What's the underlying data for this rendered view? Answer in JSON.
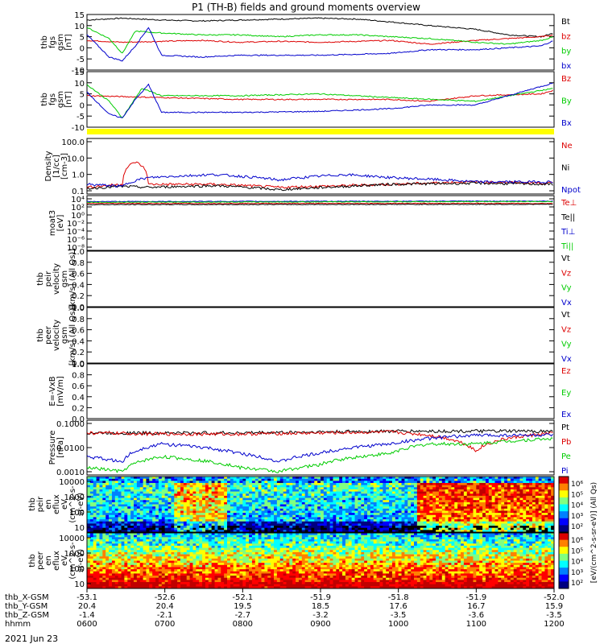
{
  "title": "P1 (TH-B) fields and ground moments overview",
  "date_label": "2021 Jun 23",
  "colors": {
    "black": "#000000",
    "red": "#dd0000",
    "green": "#00cc00",
    "blue": "#0000cc",
    "yellow": "#ffff00"
  },
  "chart_data": [
    {
      "type": "line",
      "panel": "fgs-gsm",
      "ylabel": [
        "thb",
        "fgs",
        "gsm",
        "[nT]"
      ],
      "yticks": [
        "15",
        "10",
        "5",
        "0",
        "-5",
        "-10"
      ],
      "ylim": [
        -15,
        15
      ],
      "series": [
        {
          "name": "Bt",
          "color": "red_black",
          "values": [
            [
              6,
              12
            ],
            [
              60,
              13
            ],
            [
              120,
              12
            ],
            [
              180,
              11.5
            ],
            [
              240,
              12
            ],
            [
              300,
              12.5
            ],
            [
              360,
              13
            ],
            [
              420,
              12.5
            ],
            [
              470,
              11
            ],
            [
              530,
              9
            ],
            [
              600,
              7
            ],
            [
              650,
              4
            ],
            [
              700,
              3
            ],
            [
              720,
              5
            ]
          ]
        },
        {
          "name": "bz",
          "values": [
            [
              6,
              1
            ],
            [
              60,
              0
            ],
            [
              120,
              0.5
            ],
            [
              180,
              1
            ],
            [
              240,
              0
            ],
            [
              300,
              0.5
            ],
            [
              360,
              0
            ],
            [
              420,
              0.5
            ],
            [
              470,
              1
            ],
            [
              530,
              -1
            ],
            [
              600,
              1
            ],
            [
              650,
              2
            ],
            [
              700,
              3
            ],
            [
              720,
              4
            ]
          ]
        },
        {
          "name": "by",
          "values": [
            [
              6,
              8
            ],
            [
              40,
              2
            ],
            [
              60,
              -6
            ],
            [
              80,
              6
            ],
            [
              120,
              5
            ],
            [
              180,
              4
            ],
            [
              240,
              4
            ],
            [
              300,
              3
            ],
            [
              360,
              4
            ],
            [
              420,
              4
            ],
            [
              470,
              3
            ],
            [
              530,
              2
            ],
            [
              600,
              0
            ],
            [
              650,
              -1
            ],
            [
              700,
              1
            ],
            [
              720,
              3
            ]
          ]
        },
        {
          "name": "bx",
          "values": [
            [
              6,
              4
            ],
            [
              40,
              -8
            ],
            [
              60,
              -10
            ],
            [
              80,
              -2
            ],
            [
              100,
              8
            ],
            [
              120,
              -7
            ],
            [
              180,
              -8
            ],
            [
              240,
              -7
            ],
            [
              300,
              -7
            ],
            [
              360,
              -7
            ],
            [
              420,
              -6.5
            ],
            [
              470,
              -6
            ],
            [
              530,
              -4
            ],
            [
              600,
              -4
            ],
            [
              650,
              -3
            ],
            [
              700,
              -2
            ],
            [
              720,
              1
            ]
          ]
        }
      ]
    },
    {
      "type": "line",
      "panel": "fgs-gsm2",
      "ylabel": [
        "thb",
        "fgs",
        "gsm",
        "[nT]"
      ],
      "yticks": [
        "15",
        "10",
        "5",
        "0",
        "-5",
        "-10"
      ],
      "ylim": [
        -15,
        15
      ],
      "series": [
        {
          "name": "Bz",
          "values": [
            [
              6,
              2
            ],
            [
              120,
              1
            ],
            [
              240,
              0
            ],
            [
              360,
              0
            ],
            [
              470,
              0
            ],
            [
              530,
              -1
            ],
            [
              600,
              2
            ],
            [
              700,
              3
            ],
            [
              720,
              5
            ]
          ]
        },
        {
          "name": "By",
          "values": [
            [
              6,
              8
            ],
            [
              40,
              -1
            ],
            [
              60,
              -10
            ],
            [
              90,
              6
            ],
            [
              120,
              2
            ],
            [
              240,
              2
            ],
            [
              360,
              3
            ],
            [
              470,
              1
            ],
            [
              600,
              -1
            ],
            [
              720,
              6
            ]
          ]
        },
        {
          "name": "Bx",
          "values": [
            [
              6,
              4
            ],
            [
              40,
              -8
            ],
            [
              60,
              -10
            ],
            [
              80,
              0
            ],
            [
              100,
              8
            ],
            [
              120,
              -7
            ],
            [
              240,
              -7
            ],
            [
              360,
              -6.5
            ],
            [
              470,
              -5
            ],
            [
              530,
              -3
            ],
            [
              600,
              -3
            ],
            [
              700,
              7
            ],
            [
              720,
              9
            ]
          ]
        }
      ]
    },
    {
      "type": "line",
      "panel": "density",
      "yscale": "log",
      "ylabel": [
        "Density",
        "[1/cc]",
        "[cm-3]"
      ],
      "yticks": [
        "100.0",
        "10.0",
        "1.0",
        "0.1"
      ],
      "ylim": [
        0.02,
        200
      ],
      "series": [
        {
          "name": "Ne",
          "values": [
            [
              6,
              0.06
            ],
            [
              60,
              0.1
            ],
            [
              80,
              4
            ],
            [
              100,
              0.1
            ],
            [
              200,
              0.1
            ],
            [
              300,
              0.06
            ],
            [
              400,
              0.08
            ],
            [
              470,
              0.1
            ],
            [
              600,
              0.15
            ],
            [
              720,
              0.12
            ]
          ]
        },
        {
          "name": "Ni",
          "values": [
            [
              6,
              0.05
            ],
            [
              60,
              0.07
            ],
            [
              100,
              0.06
            ],
            [
              200,
              0.08
            ],
            [
              300,
              0.04
            ],
            [
              400,
              0.07
            ],
            [
              470,
              0.1
            ],
            [
              600,
              0.12
            ],
            [
              720,
              0.1
            ]
          ]
        },
        {
          "name": "Npot",
          "values": [
            [
              6,
              0.1
            ],
            [
              60,
              0.07
            ],
            [
              100,
              0.3
            ],
            [
              200,
              0.5
            ],
            [
              300,
              0.2
            ],
            [
              400,
              0.5
            ],
            [
              470,
              0.3
            ],
            [
              600,
              0.15
            ],
            [
              720,
              0.15
            ]
          ]
        }
      ]
    },
    {
      "type": "line",
      "panel": "temperature",
      "yscale": "log",
      "ylabel": [
        "moat3",
        "[eV]"
      ],
      "yticks": [
        "10⁴",
        "10²",
        "10⁰",
        "10⁻²",
        "10⁻⁴",
        "10⁻⁶",
        "10⁻⁸"
      ],
      "ylim": [
        1e-09,
        100000.0
      ],
      "series": [
        {
          "name": "Te⊥",
          "values": [
            [
              6,
              1000
            ],
            [
              720,
              1000
            ]
          ]
        },
        {
          "name": "Te||",
          "values": [
            [
              6,
              500
            ],
            [
              720,
              600
            ]
          ]
        },
        {
          "name": "Ti⊥",
          "values": [
            [
              6,
              3000
            ],
            [
              720,
              4000
            ]
          ]
        },
        {
          "name": "Ti||",
          "values": [
            [
              6,
              2000
            ],
            [
              720,
              3000
            ]
          ]
        }
      ]
    },
    {
      "type": "line",
      "panel": "peir-velocity",
      "ylabel": [
        "thb",
        "peir",
        "velocity",
        "gsm",
        "[km/s] (All Qs)]"
      ],
      "yticks": [
        "1.0",
        "0.8",
        "0.6",
        "0.4",
        "0.2",
        "0.0"
      ],
      "ylim": [
        0,
        1
      ],
      "series": [
        {
          "name": "Vt",
          "values": []
        },
        {
          "name": "Vz",
          "values": []
        },
        {
          "name": "Vy",
          "values": []
        },
        {
          "name": "Vx",
          "values": []
        }
      ]
    },
    {
      "type": "line",
      "panel": "peer-velocity",
      "ylabel": [
        "thb",
        "peer",
        "velocity",
        "gsm",
        "[km/s] (All Qs)]"
      ],
      "yticks": [
        "1.0",
        "0.8",
        "0.6",
        "0.4",
        "0.2",
        "0.0"
      ],
      "ylim": [
        0,
        1
      ],
      "series": [
        {
          "name": "Vt",
          "values": []
        },
        {
          "name": "Vz",
          "values": []
        },
        {
          "name": "Vy",
          "values": []
        },
        {
          "name": "Vx",
          "values": []
        }
      ]
    },
    {
      "type": "line",
      "panel": "efield",
      "ylabel": [
        "E=-VxB",
        "[mV/m]"
      ],
      "yticks": [
        "1.0",
        "0.8",
        "0.6",
        "0.4",
        "0.2",
        "0.0"
      ],
      "ylim": [
        0,
        1
      ],
      "series": [
        {
          "name": "Ez",
          "values": []
        },
        {
          "name": "Ey",
          "values": []
        },
        {
          "name": "Ex",
          "values": []
        }
      ]
    },
    {
      "type": "line",
      "panel": "pressure",
      "yscale": "log",
      "ylabel": [
        "Pressure",
        "[nPa]"
      ],
      "yticks": [
        "0.1000",
        "0.0100",
        "0.0010"
      ],
      "ylim": [
        0.0002,
        0.2
      ],
      "series": [
        {
          "name": "Pt",
          "values": [
            [
              6,
              0.04
            ],
            [
              120,
              0.04
            ],
            [
              240,
              0.04
            ],
            [
              360,
              0.045
            ],
            [
              470,
              0.05
            ],
            [
              600,
              0.05
            ],
            [
              720,
              0.05
            ]
          ]
        },
        {
          "name": "Pb",
          "values": [
            [
              6,
              0.04
            ],
            [
              120,
              0.035
            ],
            [
              240,
              0.035
            ],
            [
              360,
              0.04
            ],
            [
              470,
              0.045
            ],
            [
              530,
              0.03
            ],
            [
              600,
              0.004
            ],
            [
              650,
              0.02
            ],
            [
              720,
              0.04
            ]
          ]
        },
        {
          "name": "Pe",
          "values": [
            [
              6,
              0.0005
            ],
            [
              60,
              0.0003
            ],
            [
              120,
              0.002
            ],
            [
              240,
              0.0005
            ],
            [
              300,
              0.0003
            ],
            [
              360,
              0.0007
            ],
            [
              470,
              0.003
            ],
            [
              530,
              0.01
            ],
            [
              600,
              0.01
            ],
            [
              720,
              0.02
            ]
          ]
        },
        {
          "name": "Pi",
          "values": [
            [
              6,
              0.002
            ],
            [
              60,
              0.001
            ],
            [
              120,
              0.01
            ],
            [
              240,
              0.003
            ],
            [
              300,
              0.001
            ],
            [
              360,
              0.003
            ],
            [
              470,
              0.01
            ],
            [
              530,
              0.02
            ],
            [
              600,
              0.03
            ],
            [
              720,
              0.03
            ]
          ]
        }
      ]
    },
    {
      "type": "heatmap",
      "panel": "peir-spectrogram",
      "ylabel": [
        "thb",
        "peir",
        "en",
        "eflux",
        "eV",
        "(cm^2-s-",
        "sr-eV)"
      ],
      "yticks": [
        "10000",
        "1000",
        "100",
        "10"
      ],
      "colorbar": {
        "ticks": [
          "10⁶",
          "10⁵",
          "10⁴",
          "10³",
          "10²"
        ],
        "label": "[eV/(cm^2-s-sr-eV)] (All Qs)"
      }
    },
    {
      "type": "heatmap",
      "panel": "peer-spectrogram",
      "ylabel": [
        "thb",
        "peer",
        "en",
        "eflux",
        "eV",
        "(cm^2-s-",
        "sr-eV)"
      ],
      "yticks": [
        "10000",
        "1000",
        "100",
        "10"
      ],
      "colorbar": {
        "ticks": [
          "10⁶",
          "10⁵",
          "10⁴",
          "10³",
          "10²"
        ],
        "label": "[eV/(cm^2-s-sr-eV)]"
      }
    }
  ],
  "xaxis": {
    "rows": [
      {
        "label": "thb_X-GSM",
        "values": [
          "-53.1",
          "-52.6",
          "-52.1",
          "-51.9",
          "-51.8",
          "-51.9",
          "-52.0"
        ]
      },
      {
        "label": "thb_Y-GSM",
        "values": [
          "20.4",
          "20.4",
          "19.5",
          "18.5",
          "17.6",
          "16.7",
          "15.9"
        ]
      },
      {
        "label": "thb_Z-GSM",
        "values": [
          "-1.4",
          "-2.1",
          "-2.7",
          "-3.2",
          "-3.5",
          "-3.6",
          "-3.5"
        ]
      },
      {
        "label": "hhmm",
        "values": [
          "0600",
          "0700",
          "0800",
          "0900",
          "1000",
          "1100",
          "1200"
        ]
      }
    ]
  }
}
